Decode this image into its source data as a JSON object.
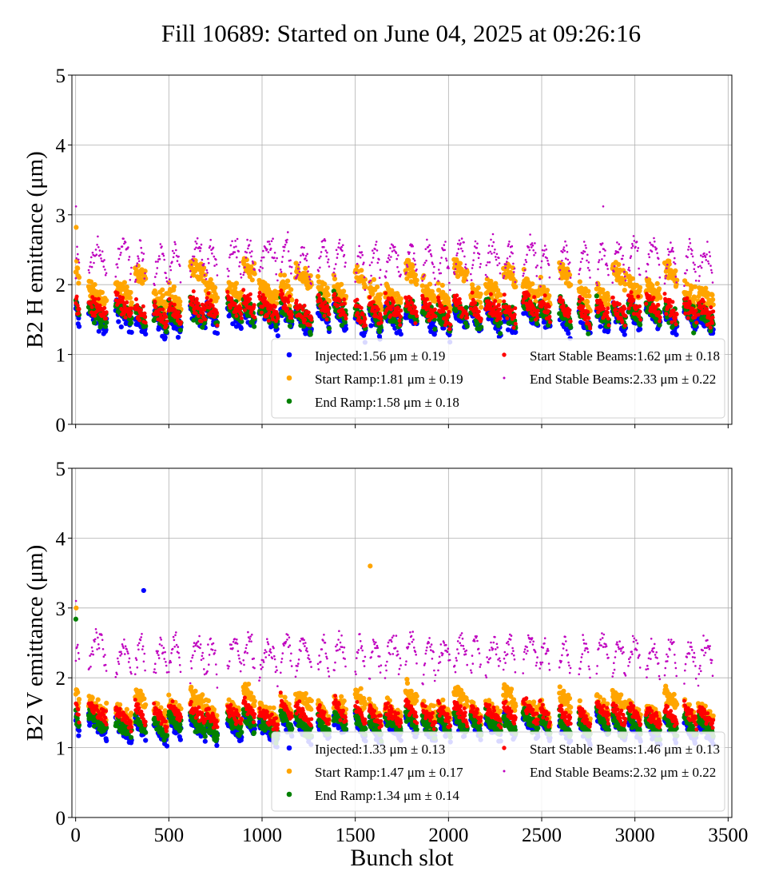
{
  "figure_title": "Fill 10689: Started on June 04, 2025 at 09:26:16",
  "chart_data": [
    {
      "type": "scatter",
      "title": "",
      "xlabel": "",
      "ylabel": "B2 H emittance (μm)",
      "xlim": [
        -20,
        3520
      ],
      "ylim": [
        0,
        5
      ],
      "x_ticks": [
        0,
        500,
        1000,
        1500,
        2000,
        2500,
        3000,
        3500
      ],
      "x_tick_labels_visible": false,
      "y_ticks": [
        0,
        1,
        2,
        3,
        4,
        5
      ],
      "grid": true,
      "legend_placement": "lower-right",
      "series": [
        {
          "name": "Injected",
          "legend_label": "Injected:1.56 μm ± 0.19",
          "mean": 1.56,
          "std": 0.19,
          "color": "#0000ff",
          "marker": "large"
        },
        {
          "name": "Start Ramp",
          "legend_label": "Start Ramp:1.81 μm ± 0.19",
          "mean": 1.81,
          "std": 0.19,
          "color": "#ffa500",
          "marker": "large"
        },
        {
          "name": "End Ramp",
          "legend_label": "End Ramp:1.58 μm ± 0.18",
          "mean": 1.58,
          "std": 0.18,
          "color": "#008000",
          "marker": "large"
        },
        {
          "name": "Start Stable Beams",
          "legend_label": "Start Stable Beams:1.62 μm ± 0.18",
          "mean": 1.62,
          "std": 0.18,
          "color": "#ff0000",
          "marker": "medium"
        },
        {
          "name": "End Stable Beams",
          "legend_label": "End Stable Beams:2.33 μm ± 0.22",
          "mean": 2.33,
          "std": 0.22,
          "color": "#bf00bf",
          "marker": "small"
        }
      ]
    },
    {
      "type": "scatter",
      "title": "",
      "xlabel": "Bunch slot",
      "ylabel": "B2 V emittance (μm)",
      "xlim": [
        -20,
        3520
      ],
      "ylim": [
        0,
        5
      ],
      "x_ticks": [
        0,
        500,
        1000,
        1500,
        2000,
        2500,
        3000,
        3500
      ],
      "x_tick_labels_visible": true,
      "y_ticks": [
        0,
        1,
        2,
        3,
        4,
        5
      ],
      "grid": true,
      "legend_placement": "lower-right",
      "series": [
        {
          "name": "Injected",
          "legend_label": "Injected:1.33 μm ± 0.13",
          "mean": 1.33,
          "std": 0.13,
          "color": "#0000ff",
          "marker": "large"
        },
        {
          "name": "Start Ramp",
          "legend_label": "Start Ramp:1.47 μm ± 0.17",
          "mean": 1.47,
          "std": 0.17,
          "color": "#ffa500",
          "marker": "large"
        },
        {
          "name": "End Ramp",
          "legend_label": "End Ramp:1.34 μm ± 0.14",
          "mean": 1.34,
          "std": 0.14,
          "color": "#008000",
          "marker": "large"
        },
        {
          "name": "Start Stable Beams",
          "legend_label": "Start Stable Beams:1.46 μm ± 0.13",
          "mean": 1.46,
          "std": 0.13,
          "color": "#ff0000",
          "marker": "medium"
        },
        {
          "name": "End Stable Beams",
          "legend_label": "End Stable Beams:2.32 μm ± 0.22",
          "mean": 2.32,
          "std": 0.22,
          "color": "#bf00bf",
          "marker": "small"
        }
      ]
    }
  ],
  "bunch_trains": [
    [
      1,
      20
    ],
    [
      70,
      165
    ],
    [
      215,
      300
    ],
    [
      320,
      375
    ],
    [
      420,
      490
    ],
    [
      500,
      565
    ],
    [
      615,
      695
    ],
    [
      700,
      760
    ],
    [
      815,
      890
    ],
    [
      900,
      960
    ],
    [
      985,
      1085
    ],
    [
      1100,
      1160
    ],
    [
      1180,
      1265
    ],
    [
      1300,
      1360
    ],
    [
      1385,
      1450
    ],
    [
      1500,
      1555
    ],
    [
      1575,
      1640
    ],
    [
      1660,
      1745
    ],
    [
      1770,
      1830
    ],
    [
      1860,
      1930
    ],
    [
      1945,
      2010
    ],
    [
      2030,
      2100
    ],
    [
      2120,
      2175
    ],
    [
      2200,
      2280
    ],
    [
      2295,
      2360
    ],
    [
      2400,
      2480
    ],
    [
      2490,
      2545
    ],
    [
      2595,
      2655
    ],
    [
      2700,
      2760
    ],
    [
      2795,
      2860
    ],
    [
      2880,
      2950
    ],
    [
      2965,
      3030
    ],
    [
      3060,
      3135
    ],
    [
      3160,
      3225
    ],
    [
      3265,
      3330
    ],
    [
      3340,
      3420
    ]
  ],
  "outliers": [
    {
      "panel": 0,
      "series": "Start Ramp",
      "x": 3,
      "y": 2.82
    },
    {
      "panel": 0,
      "series": "End Stable Beams",
      "x": 2,
      "y": 3.12
    },
    {
      "panel": 0,
      "series": "Injected",
      "x": 365,
      "y": 2.07
    },
    {
      "panel": 0,
      "series": "End Stable Beams",
      "x": 2830,
      "y": 3.12
    },
    {
      "panel": 1,
      "series": "Injected",
      "x": 365,
      "y": 3.25
    },
    {
      "panel": 1,
      "series": "Start Ramp",
      "x": 1580,
      "y": 3.6
    },
    {
      "panel": 1,
      "series": "Start Ramp",
      "x": 3,
      "y": 3.0
    },
    {
      "panel": 1,
      "series": "End Ramp",
      "x": 1,
      "y": 2.84
    },
    {
      "panel": 1,
      "series": "End Stable Beams",
      "x": 2,
      "y": 3.1
    }
  ]
}
